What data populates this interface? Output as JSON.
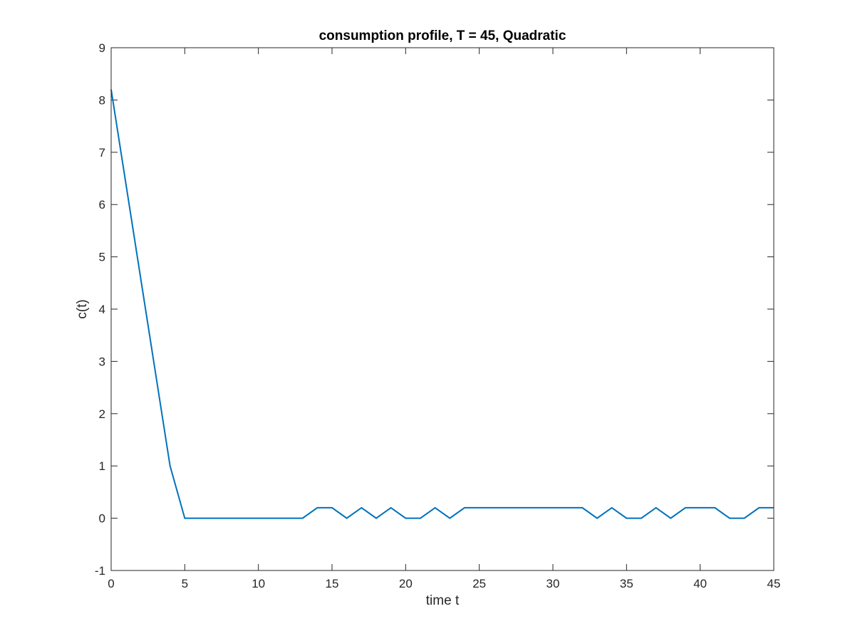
{
  "chart_data": {
    "type": "line",
    "title": "consumption profile, T = 45, Quadratic",
    "xlabel": "time t",
    "ylabel": "c(t)",
    "xlim": [
      0,
      45
    ],
    "ylim": [
      -1,
      9
    ],
    "xticks": [
      0,
      5,
      10,
      15,
      20,
      25,
      30,
      35,
      40,
      45
    ],
    "yticks": [
      -1,
      0,
      1,
      2,
      3,
      4,
      5,
      6,
      7,
      8,
      9
    ],
    "grid": false,
    "legend": "none",
    "series": [
      {
        "color": "#0072BD",
        "x": [
          0,
          1,
          2,
          3,
          4,
          5,
          6,
          7,
          8,
          9,
          10,
          11,
          12,
          13,
          14,
          15,
          16,
          17,
          18,
          19,
          20,
          21,
          22,
          23,
          24,
          25,
          26,
          27,
          28,
          29,
          30,
          31,
          32,
          33,
          34,
          35,
          36,
          37,
          38,
          39,
          40,
          41,
          42,
          43,
          44,
          45
        ],
        "y": [
          8.2,
          6.4,
          4.6,
          2.8,
          1.0,
          0,
          0,
          0,
          0,
          0,
          0,
          0,
          0,
          0,
          0.2,
          0.2,
          0,
          0.2,
          0,
          0.2,
          0,
          0,
          0.2,
          0,
          0.2,
          0.2,
          0.2,
          0.2,
          0.2,
          0.2,
          0.2,
          0.2,
          0.2,
          0,
          0.2,
          0,
          0,
          0.2,
          0,
          0.2,
          0.2,
          0.2,
          0,
          0,
          0.2,
          0.2
        ]
      }
    ]
  }
}
